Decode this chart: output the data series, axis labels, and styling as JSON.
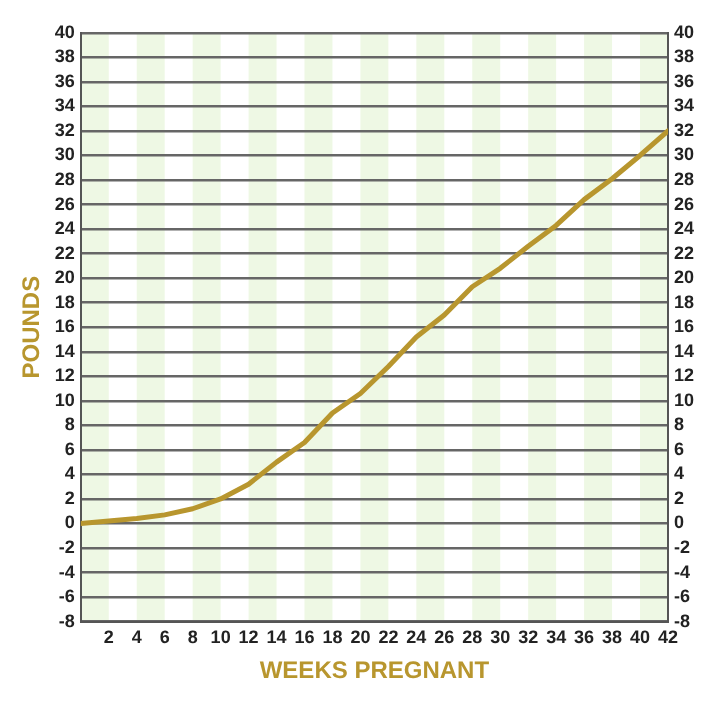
{
  "chart_data": {
    "type": "line",
    "xlabel": "WEEKS PREGNANT",
    "ylabel": "POUNDS",
    "x": [
      0,
      2,
      4,
      6,
      8,
      10,
      12,
      14,
      16,
      18,
      20,
      22,
      24,
      26,
      28,
      30,
      32,
      34,
      36,
      38,
      40,
      42
    ],
    "series": [
      {
        "color": "#b8962e",
        "values": [
          0,
          0.2,
          0.4,
          0.7,
          1.2,
          2,
          3.2,
          5,
          6.6,
          9,
          10.6,
          12.8,
          15.2,
          17,
          19.3,
          20.8,
          22.6,
          24.3,
          26.4,
          28.1,
          30,
          32
        ]
      }
    ],
    "xlim": [
      0,
      42
    ],
    "xticks": [
      2,
      4,
      6,
      8,
      10,
      12,
      14,
      16,
      18,
      20,
      22,
      24,
      26,
      28,
      30,
      32,
      34,
      36,
      38,
      40,
      42
    ],
    "ylim": [
      -8,
      40
    ],
    "yticks": [
      -8,
      -6,
      -4,
      -2,
      0,
      2,
      4,
      6,
      8,
      10,
      12,
      14,
      16,
      18,
      20,
      22,
      24,
      26,
      28,
      30,
      32,
      34,
      36,
      38,
      40
    ],
    "y2lim": [
      -8,
      40
    ],
    "y2ticks": [
      -8,
      -6,
      -4,
      -2,
      0,
      2,
      4,
      6,
      8,
      10,
      12,
      14,
      16,
      18,
      20,
      22,
      24,
      26,
      28,
      30,
      32,
      34,
      36,
      38,
      40
    ],
    "bands": [
      {
        "axis": "x",
        "from": 0,
        "to": 2,
        "color": "#eef8e4"
      },
      {
        "axis": "x",
        "from": 4,
        "to": 6,
        "color": "#eef8e4"
      },
      {
        "axis": "x",
        "from": 8,
        "to": 10,
        "color": "#eef8e4"
      },
      {
        "axis": "x",
        "from": 12,
        "to": 14,
        "color": "#eef8e4"
      },
      {
        "axis": "x",
        "from": 16,
        "to": 18,
        "color": "#eef8e4"
      },
      {
        "axis": "x",
        "from": 20,
        "to": 22,
        "color": "#eef8e4"
      },
      {
        "axis": "x",
        "from": 24,
        "to": 26,
        "color": "#eef8e4"
      },
      {
        "axis": "x",
        "from": 28,
        "to": 30,
        "color": "#eef8e4"
      },
      {
        "axis": "x",
        "from": 32,
        "to": 34,
        "color": "#eef8e4"
      },
      {
        "axis": "x",
        "from": 36,
        "to": 38,
        "color": "#eef8e4"
      },
      {
        "axis": "x",
        "from": 40,
        "to": 42,
        "color": "#eef8e4"
      }
    ],
    "grid": "y",
    "marker": "none",
    "line_style": "solid",
    "legend": false
  }
}
